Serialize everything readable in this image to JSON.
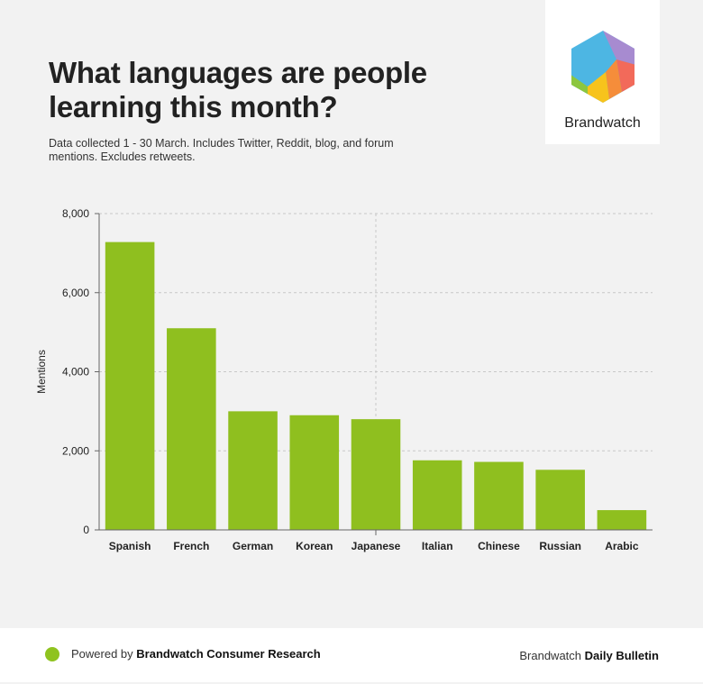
{
  "header": {
    "title": "What languages are people learning this month?",
    "subtitle": "Data collected 1 - 30 March. Includes Twitter, Reddit, blog, and forum mentions. Excludes retweets."
  },
  "logo": {
    "label": "Brandwatch",
    "icon": "hexagon-logo-icon"
  },
  "footer": {
    "powered_prefix": "Powered by",
    "powered_brand": "Brandwatch Consumer Research",
    "right_prefix": "Brandwatch",
    "right_bold": "Daily Bulletin",
    "dot_color": "#8fc31f"
  },
  "chart_data": {
    "type": "bar",
    "categories": [
      "Spanish",
      "French",
      "German",
      "Korean",
      "Japanese",
      "Italian",
      "Chinese",
      "Russian",
      "Arabic"
    ],
    "values": [
      7280,
      5100,
      3000,
      2900,
      2800,
      1760,
      1720,
      1520,
      500
    ],
    "ylabel": "Mentions",
    "xlabel": "",
    "ylim": [
      0,
      8000
    ],
    "yticks": [
      0,
      2000,
      4000,
      6000,
      8000
    ],
    "ytick_labels": [
      "0",
      "2,000",
      "4,000",
      "6,000",
      "8,000"
    ],
    "bar_color": "#8fbf1f",
    "grid": true
  }
}
